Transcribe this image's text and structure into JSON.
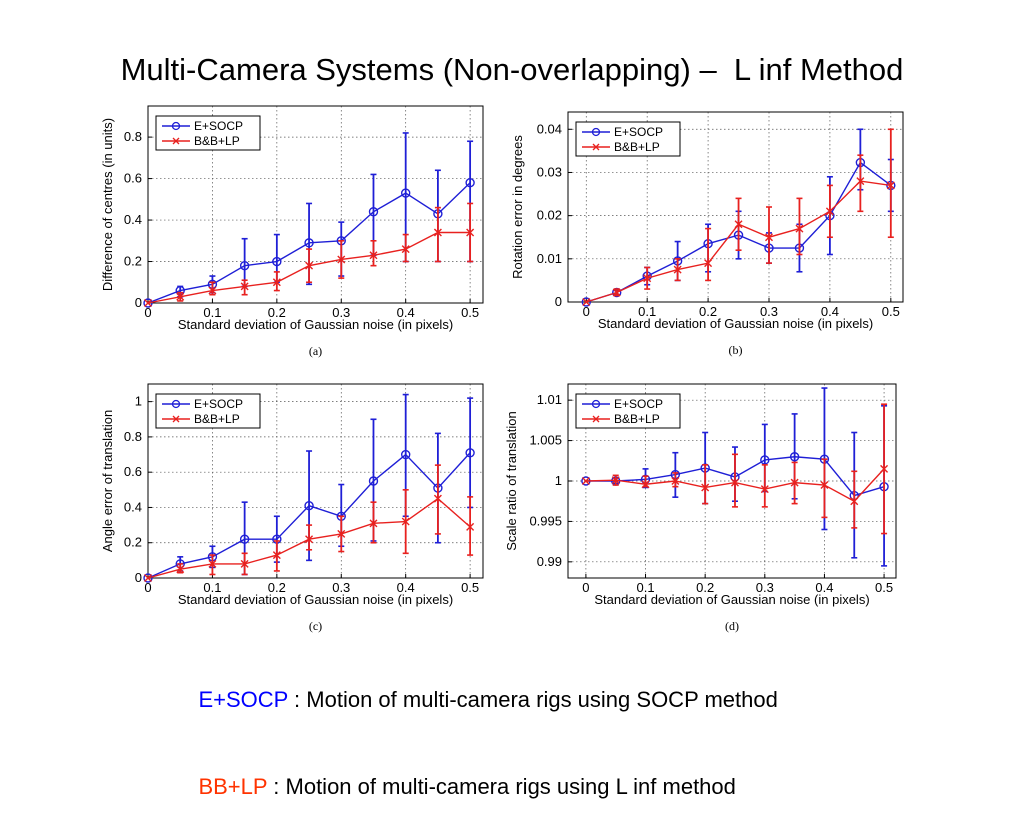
{
  "title": "Multi-Camera Systems (Non-overlapping) –  L inf Method",
  "colors": {
    "e_socp": "#1f1fd6",
    "bb_lp": "#e8211f",
    "legend_blue_text": "#0000ff",
    "legend_red_text": "#ff3300"
  },
  "chart_data": [
    {
      "type": "line",
      "caption": "(a)",
      "xlabel": "Standard deviation of Gaussian noise (in pixels)",
      "ylabel": "Difference of centres (in units)",
      "xlim": [
        0,
        0.52
      ],
      "ylim": [
        0,
        0.95
      ],
      "xticks": [
        0,
        0.1,
        0.2,
        0.3,
        0.4,
        0.5
      ],
      "xtick_labels": [
        "0",
        "0.1",
        "0.2",
        "0.3",
        "0.4",
        "0.5"
      ],
      "yticks": [
        0,
        0.2,
        0.4,
        0.6,
        0.8
      ],
      "ytick_labels": [
        "0",
        "0.2",
        "0.4",
        "0.6",
        "0.8"
      ],
      "grid": true,
      "legend_position": "top-left",
      "x": [
        0,
        0.05,
        0.1,
        0.15,
        0.2,
        0.25,
        0.3,
        0.35,
        0.4,
        0.45,
        0.5
      ],
      "series": [
        {
          "name": "E+SOCP",
          "marker": "circle",
          "values": [
            0,
            0.06,
            0.09,
            0.18,
            0.2,
            0.29,
            0.3,
            0.44,
            0.53,
            0.43,
            0.58
          ],
          "err_low": [
            0,
            0.03,
            0.05,
            0.08,
            0.1,
            0.09,
            0.13,
            0.23,
            0.2,
            0.2,
            0.2
          ],
          "err_high": [
            0,
            0.08,
            0.13,
            0.31,
            0.33,
            0.48,
            0.39,
            0.62,
            0.82,
            0.64,
            0.78
          ]
        },
        {
          "name": "B&B+LP",
          "marker": "x",
          "values": [
            0,
            0.03,
            0.06,
            0.08,
            0.1,
            0.18,
            0.21,
            0.23,
            0.26,
            0.34,
            0.34
          ],
          "err_low": [
            0,
            0.01,
            0.04,
            0.04,
            0.06,
            0.1,
            0.12,
            0.18,
            0.2,
            0.2,
            0.2
          ],
          "err_high": [
            0,
            0.05,
            0.1,
            0.11,
            0.15,
            0.26,
            0.3,
            0.3,
            0.33,
            0.46,
            0.48
          ]
        }
      ]
    },
    {
      "type": "line",
      "caption": "(b)",
      "xlabel": "Standard deviation of Gaussian noise (in pixels)",
      "ylabel": "Rotation error in degrees",
      "xlim": [
        -0.03,
        0.52
      ],
      "ylim": [
        0,
        0.044
      ],
      "xticks": [
        0,
        0.1,
        0.2,
        0.3,
        0.4,
        0.5
      ],
      "xtick_labels": [
        "0",
        "0.1",
        "0.2",
        "0.3",
        "0.4",
        "0.5"
      ],
      "yticks": [
        0,
        0.01,
        0.02,
        0.03,
        0.04
      ],
      "ytick_labels": [
        "0",
        "0.01",
        "0.02",
        "0.03",
        "0.04"
      ],
      "grid": true,
      "legend_position": "top-left",
      "x": [
        0,
        0.05,
        0.1,
        0.15,
        0.2,
        0.25,
        0.3,
        0.35,
        0.4,
        0.45,
        0.5
      ],
      "series": [
        {
          "name": "E+SOCP",
          "marker": "circle",
          "values": [
            0,
            0.0022,
            0.006,
            0.0095,
            0.0135,
            0.0155,
            0.0125,
            0.0125,
            0.02,
            0.0323,
            0.027
          ],
          "err_low": [
            0,
            0.0017,
            0.004,
            0.005,
            0.007,
            0.01,
            0.009,
            0.007,
            0.011,
            0.026,
            0.021
          ],
          "err_high": [
            0,
            0.0027,
            0.008,
            0.014,
            0.018,
            0.021,
            0.016,
            0.018,
            0.029,
            0.04,
            0.033
          ]
        },
        {
          "name": "B&B+LP",
          "marker": "x",
          "values": [
            0,
            0.0022,
            0.0055,
            0.0075,
            0.009,
            0.018,
            0.015,
            0.017,
            0.021,
            0.028,
            0.027
          ],
          "err_low": [
            0,
            0.0015,
            0.003,
            0.005,
            0.005,
            0.012,
            0.009,
            0.011,
            0.015,
            0.021,
            0.015
          ],
          "err_high": [
            0,
            0.003,
            0.008,
            0.01,
            0.017,
            0.024,
            0.022,
            0.024,
            0.027,
            0.034,
            0.04
          ]
        }
      ]
    },
    {
      "type": "line",
      "caption": "(c)",
      "xlabel": "Standard deviation of Gaussian noise (in pixels)",
      "ylabel": "Angle error of translation",
      "xlim": [
        0,
        0.52
      ],
      "ylim": [
        0,
        1.1
      ],
      "xticks": [
        0,
        0.1,
        0.2,
        0.3,
        0.4,
        0.5
      ],
      "xtick_labels": [
        "0",
        "0.1",
        "0.2",
        "0.3",
        "0.4",
        "0.5"
      ],
      "yticks": [
        0,
        0.2,
        0.4,
        0.6,
        0.8,
        1
      ],
      "ytick_labels": [
        "0",
        "0.2",
        "0.4",
        "0.6",
        "0.8",
        "1"
      ],
      "grid": true,
      "legend_position": "top-left",
      "x": [
        0,
        0.05,
        0.1,
        0.15,
        0.2,
        0.25,
        0.3,
        0.35,
        0.4,
        0.45,
        0.5
      ],
      "series": [
        {
          "name": "E+SOCP",
          "marker": "circle",
          "values": [
            0,
            0.08,
            0.12,
            0.22,
            0.22,
            0.41,
            0.35,
            0.55,
            0.7,
            0.51,
            0.71
          ],
          "err_low": [
            0,
            0.04,
            0.06,
            0.02,
            0.09,
            0.1,
            0.18,
            0.21,
            0.35,
            0.2,
            0.4
          ],
          "err_high": [
            0,
            0.12,
            0.18,
            0.43,
            0.35,
            0.72,
            0.53,
            0.9,
            1.04,
            0.82,
            1.02
          ]
        },
        {
          "name": "B&B+LP",
          "marker": "x",
          "values": [
            0,
            0.05,
            0.08,
            0.08,
            0.13,
            0.22,
            0.25,
            0.31,
            0.32,
            0.45,
            0.29
          ],
          "err_low": [
            0,
            0.03,
            0.02,
            0.02,
            0.04,
            0.16,
            0.15,
            0.2,
            0.14,
            0.25,
            0.13
          ],
          "err_high": [
            0,
            0.08,
            0.13,
            0.14,
            0.21,
            0.3,
            0.35,
            0.43,
            0.5,
            0.64,
            0.46
          ]
        }
      ]
    },
    {
      "type": "line",
      "caption": "(d)",
      "xlabel": "Standard deviation of Gaussian noise (in pixels)",
      "ylabel": "Scale ratio of translation",
      "xlim": [
        -0.03,
        0.52
      ],
      "ylim": [
        0.988,
        1.012
      ],
      "xticks": [
        0,
        0.1,
        0.2,
        0.3,
        0.4,
        0.5
      ],
      "xtick_labels": [
        "0",
        "0.1",
        "0.2",
        "0.3",
        "0.4",
        "0.5"
      ],
      "yticks": [
        0.99,
        0.995,
        1,
        1.005,
        1.01
      ],
      "ytick_labels": [
        "0.99",
        "0.995",
        "1",
        "1.005",
        "1.01"
      ],
      "grid": true,
      "legend_position": "top-left",
      "x": [
        0,
        0.05,
        0.1,
        0.15,
        0.2,
        0.25,
        0.3,
        0.35,
        0.4,
        0.45,
        0.5
      ],
      "series": [
        {
          "name": "E+SOCP",
          "marker": "circle",
          "values": [
            1.0,
            1.0,
            1.0002,
            1.0008,
            1.0016,
            1.0005,
            1.0026,
            1.003,
            1.0027,
            0.9982,
            0.9993
          ],
          "err_low": [
            1.0,
            0.9997,
            0.9992,
            0.998,
            0.9972,
            0.9975,
            0.9987,
            0.9978,
            0.994,
            0.9905,
            0.9895
          ],
          "err_high": [
            1.0,
            1.0004,
            1.0015,
            1.0035,
            1.006,
            1.0042,
            1.007,
            1.0083,
            1.0115,
            1.006,
            1.0093
          ]
        },
        {
          "name": "B&B+LP",
          "marker": "x",
          "values": [
            1.0,
            1.0001,
            0.9996,
            1.0,
            0.9992,
            0.9998,
            0.999,
            0.9998,
            0.9995,
            0.9975,
            1.0015
          ],
          "err_low": [
            1.0,
            0.9995,
            0.9993,
            0.9993,
            0.9972,
            0.9968,
            0.9968,
            0.9972,
            0.9955,
            0.9942,
            0.9935
          ],
          "err_high": [
            1.0,
            1.0007,
            1.0006,
            1.001,
            1.002,
            1.0033,
            1.002,
            1.0023,
            1.0027,
            1.0012,
            1.0095
          ]
        }
      ]
    }
  ],
  "footer": {
    "line1_term": "E+SOCP",
    "line1_text": " : Motion of multi-camera rigs using SOCP method",
    "line2_term": "BB+LP",
    "line2_text": " : Motion of multi-camera rigs using L inf method"
  }
}
